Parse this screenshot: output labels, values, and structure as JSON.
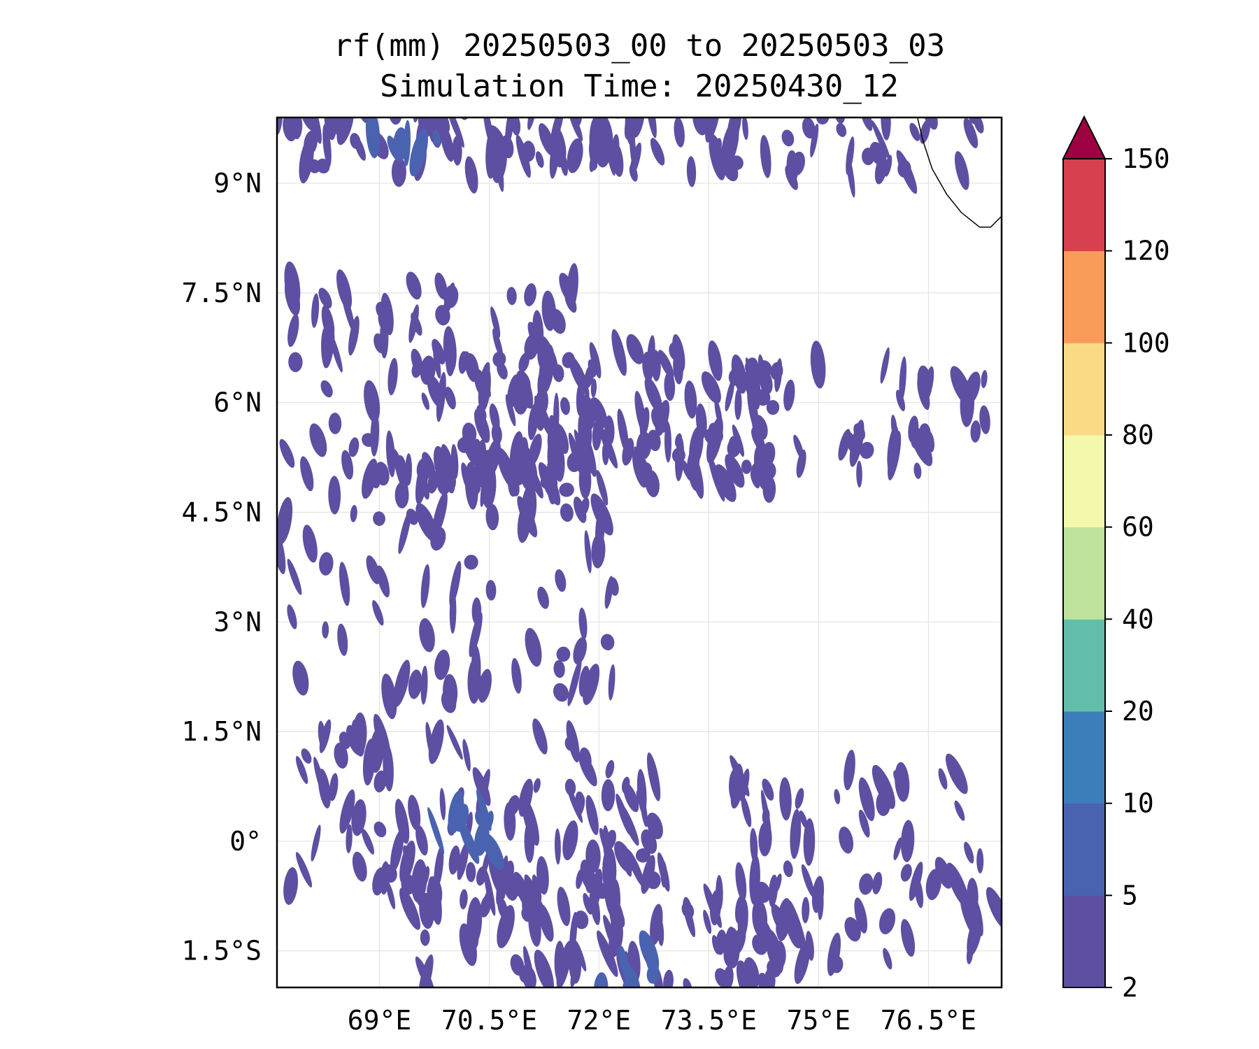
{
  "title": {
    "line1": "rf(mm) 20250503_00 to 20250503_03",
    "line2": "Simulation Time: 20250430_12"
  },
  "map": {
    "variable": "rf",
    "units": "mm",
    "lon_range": [
      67.6,
      77.5
    ],
    "lat_range": [
      -2.0,
      9.9
    ],
    "lon_ticks": [
      {
        "value": 69.0,
        "label": "69°E"
      },
      {
        "value": 70.5,
        "label": "70.5°E"
      },
      {
        "value": 72.0,
        "label": "72°E"
      },
      {
        "value": 73.5,
        "label": "73.5°E"
      },
      {
        "value": 75.0,
        "label": "75°E"
      },
      {
        "value": 76.5,
        "label": "76.5°E"
      }
    ],
    "lat_ticks": [
      {
        "value": 9.0,
        "label": "9°N"
      },
      {
        "value": 7.5,
        "label": "7.5°N"
      },
      {
        "value": 6.0,
        "label": "6°N"
      },
      {
        "value": 4.5,
        "label": "4.5°N"
      },
      {
        "value": 3.0,
        "label": "3°N"
      },
      {
        "value": 1.5,
        "label": "1.5°N"
      },
      {
        "value": 0.0,
        "label": "0°"
      },
      {
        "value": -1.5,
        "label": "1.5°S"
      }
    ],
    "gridlines": true,
    "coastline_points": [
      [
        76.35,
        9.9
      ],
      [
        76.42,
        9.6
      ],
      [
        76.55,
        9.2
      ],
      [
        76.75,
        8.85
      ],
      [
        76.95,
        8.6
      ],
      [
        77.2,
        8.4
      ],
      [
        77.35,
        8.4
      ],
      [
        77.5,
        8.55
      ]
    ],
    "rain_clusters": [
      {
        "lon": 69.6,
        "lat": 9.6,
        "span_lon": 3.0,
        "span_lat": 0.5,
        "n": 70,
        "level": 0
      },
      {
        "lon": 74.0,
        "lat": 9.55,
        "span_lon": 3.2,
        "span_lat": 0.5,
        "n": 55,
        "level": 0
      },
      {
        "lon": 69.0,
        "lat": 6.3,
        "span_lon": 2.8,
        "span_lat": 1.4,
        "n": 120,
        "level": 0
      },
      {
        "lon": 72.0,
        "lat": 5.8,
        "span_lon": 2.4,
        "span_lat": 1.0,
        "n": 110,
        "level": 0
      },
      {
        "lon": 75.3,
        "lat": 5.8,
        "span_lon": 4.2,
        "span_lat": 0.8,
        "n": 95,
        "level": 0
      },
      {
        "lon": 69.3,
        "lat": 3.5,
        "span_lon": 3.0,
        "span_lat": 1.6,
        "n": 95,
        "level": 0
      },
      {
        "lon": 70.3,
        "lat": 0.3,
        "span_lon": 2.6,
        "span_lat": 1.2,
        "n": 110,
        "level": 0
      },
      {
        "lon": 72.0,
        "lat": -1.2,
        "span_lon": 2.6,
        "span_lat": 0.8,
        "n": 90,
        "level": 0
      },
      {
        "lon": 76.2,
        "lat": 0.2,
        "span_lon": 2.6,
        "span_lat": 0.8,
        "n": 45,
        "level": 0
      },
      {
        "lon": 76.0,
        "lat": -1.1,
        "span_lon": 2.8,
        "span_lat": 0.6,
        "n": 40,
        "level": 0
      },
      {
        "lon": 72.3,
        "lat": -1.8,
        "span_lon": 0.5,
        "span_lat": 0.3,
        "n": 8,
        "level": 1
      },
      {
        "lon": 70.2,
        "lat": 0.2,
        "span_lon": 0.5,
        "span_lat": 0.4,
        "n": 10,
        "level": 1
      },
      {
        "lon": 69.5,
        "lat": 9.6,
        "span_lon": 0.6,
        "span_lat": 0.2,
        "n": 6,
        "level": 1
      }
    ]
  },
  "colorbar": {
    "levels": [
      2,
      5,
      10,
      20,
      40,
      60,
      80,
      100,
      120,
      150
    ],
    "labels": [
      "2",
      "5",
      "10",
      "20",
      "40",
      "60",
      "80",
      "100",
      "120",
      "150"
    ],
    "colors": [
      "#5e4fa2",
      "#4a63b0",
      "#3a7fba",
      "#63bea9",
      "#bde39c",
      "#f3f8ad",
      "#fbda86",
      "#f99c5a",
      "#d6404f"
    ],
    "extend_color": "#9e0142",
    "extend": "max"
  }
}
